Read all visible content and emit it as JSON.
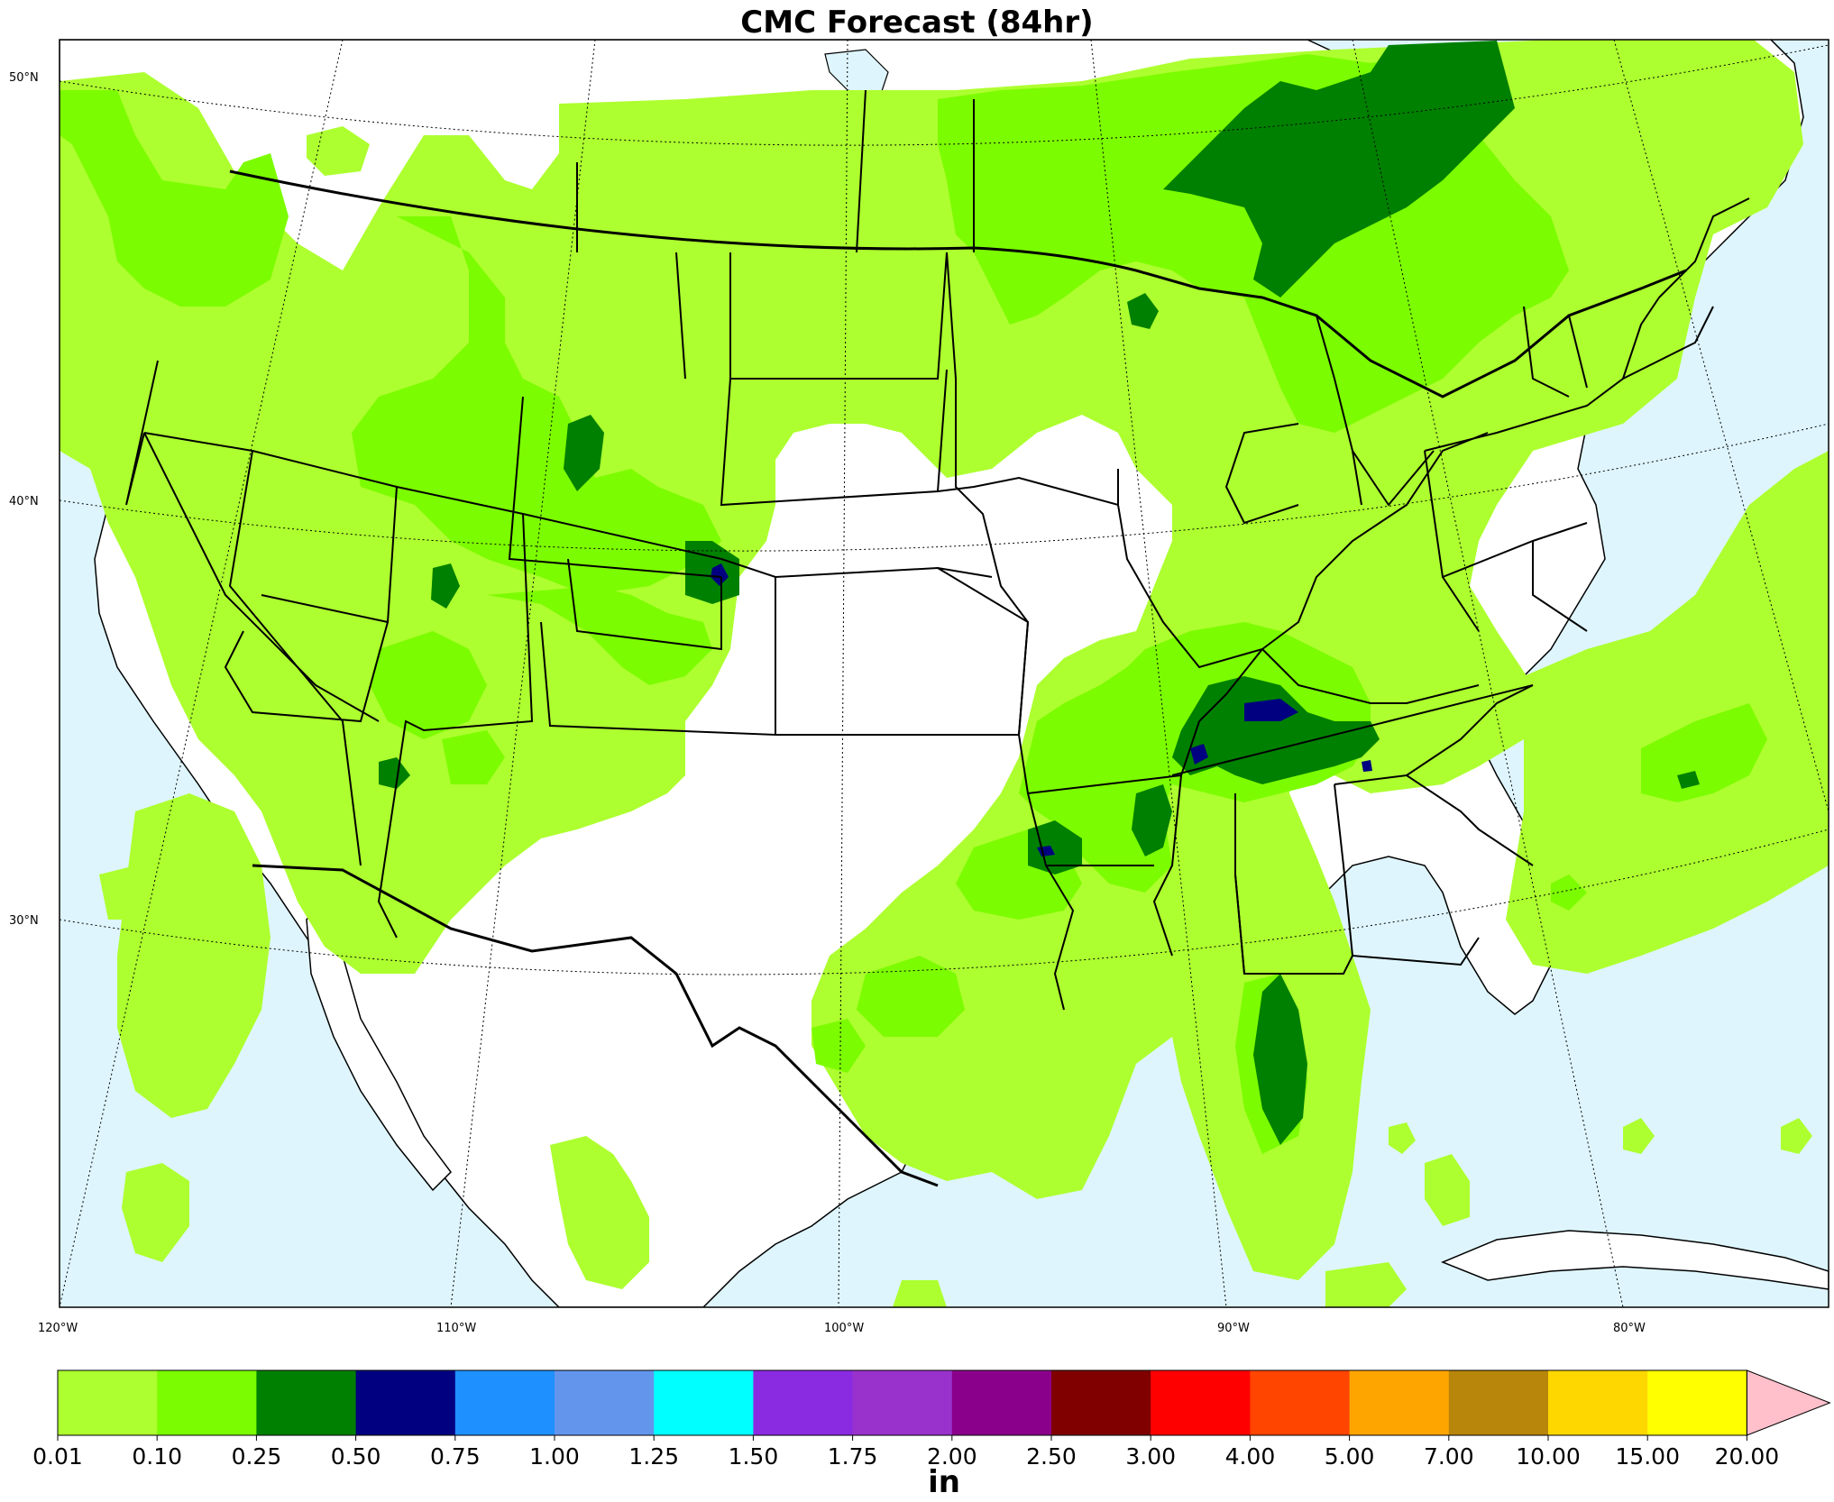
{
  "title": "CMC Forecast (84hr)",
  "latitude_labels": [
    "50°N",
    "40°N",
    "30°N"
  ],
  "longitude_labels": [
    "120°W",
    "110°W",
    "100°W",
    "90°W",
    "80°W"
  ],
  "colorbar": {
    "unit": "in",
    "ticks": [
      "0.01",
      "0.10",
      "0.25",
      "0.50",
      "0.75",
      "1.00",
      "1.25",
      "1.50",
      "1.75",
      "2.00",
      "2.50",
      "3.00",
      "4.00",
      "5.00",
      "7.00",
      "10.00",
      "15.00",
      "20.00"
    ],
    "colors": [
      "#adff2f",
      "#7cfc00",
      "#008000",
      "#000080",
      "#1e90ff",
      "#6495ed",
      "#00ffff",
      "#8a2be2",
      "#9932cc",
      "#8b008b",
      "#800000",
      "#ff0000",
      "#ff4500",
      "#ffa500",
      "#b8860b",
      "#ffd700",
      "#ffff00"
    ],
    "extend_color": "#ffc0cb"
  },
  "colors": {
    "ocean": "#def5fd",
    "land": "#ffffff",
    "border": "#000000"
  }
}
